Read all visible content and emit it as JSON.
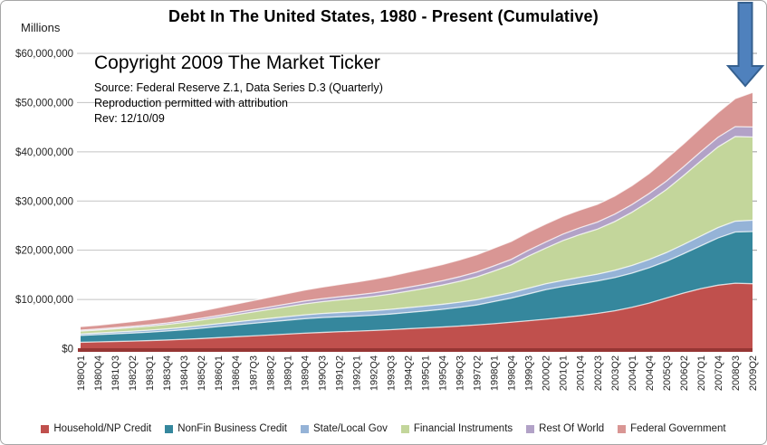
{
  "frame": {
    "background": "#FFFFFF",
    "border_color": "#A6A6A6"
  },
  "annotations": {
    "copyright": "Copyright 2009 The Market Ticker",
    "source": "Source: Federal Reserve Z.1, Data Series D.3 (Quarterly)",
    "permission": "Reproduction permitted with attribution",
    "revision": "Rev: 12/10/09",
    "arrow": {
      "direction": "down",
      "fill": "#4F81BD",
      "border": "#35608F"
    }
  },
  "chart_data": {
    "type": "area",
    "stacked": true,
    "title": "Debt In The United States, 1980 - Present (Cumulative)",
    "ylabel": "Millions",
    "xlabel": "",
    "ylim": [
      0,
      60000000
    ],
    "y_tick_step": 10000000,
    "y_tick_labels": [
      "$0",
      "$10,000,000",
      "$20,000,000",
      "$30,000,000",
      "$40,000,000",
      "$50,000,000",
      "$60,000,000"
    ],
    "x_tick_rotation": -90,
    "grid": true,
    "gridline_color": "#C3C3C3",
    "axis_line_color": "#963634",
    "tick_color": "#9A9A9A",
    "legend_position": "bottom",
    "categories": [
      "1980Q1",
      "1980Q4",
      "1981Q3",
      "1982Q2",
      "1983Q1",
      "1983Q4",
      "1984Q3",
      "1985Q2",
      "1986Q1",
      "1986Q4",
      "1987Q3",
      "1988Q2",
      "1989Q1",
      "1989Q4",
      "1990Q3",
      "1991Q2",
      "1992Q1",
      "1992Q4",
      "1993Q3",
      "1994Q2",
      "1995Q1",
      "1995Q4",
      "1996Q3",
      "1997Q2",
      "1998Q1",
      "1998Q4",
      "1999Q3",
      "2000Q2",
      "2001Q1",
      "2001Q4",
      "2002Q3",
      "2003Q2",
      "2004Q1",
      "2004Q4",
      "2005Q3",
      "2006Q2",
      "2007Q1",
      "2007Q4",
      "2008Q3",
      "2009Q2"
    ],
    "series": [
      {
        "name": "Household/NP Credit",
        "color": "#C0504D",
        "values": [
          1300000,
          1380000,
          1460000,
          1540000,
          1640000,
          1760000,
          1900000,
          2060000,
          2240000,
          2420000,
          2600000,
          2780000,
          2960000,
          3140000,
          3300000,
          3440000,
          3560000,
          3700000,
          3860000,
          4050000,
          4220000,
          4400000,
          4600000,
          4830000,
          5080000,
          5380000,
          5680000,
          6000000,
          6350000,
          6720000,
          7160000,
          7700000,
          8400000,
          9250000,
          10300000,
          11300000,
          12200000,
          12900000,
          13300000,
          13200000
        ]
      },
      {
        "name": "NonFin Business Credit",
        "color": "#35879D",
        "values": [
          1400000,
          1470000,
          1560000,
          1640000,
          1720000,
          1820000,
          1950000,
          2100000,
          2260000,
          2400000,
          2540000,
          2680000,
          2820000,
          2940000,
          3020000,
          3040000,
          3060000,
          3100000,
          3180000,
          3300000,
          3440000,
          3600000,
          3800000,
          4050000,
          4500000,
          4900000,
          5450000,
          6000000,
          6300000,
          6500000,
          6600000,
          6750000,
          6950000,
          7200000,
          7450000,
          8000000,
          8700000,
          9600000,
          10400000,
          10600000
        ]
      },
      {
        "name": "State/Local Gov",
        "color": "#95B3D7",
        "values": [
          310000,
          330000,
          350000,
          380000,
          410000,
          440000,
          480000,
          520000,
          570000,
          620000,
          670000,
          710000,
          750000,
          790000,
          820000,
          860000,
          890000,
          920000,
          950000,
          980000,
          1000000,
          1020000,
          1040000,
          1060000,
          1090000,
          1120000,
          1150000,
          1180000,
          1220000,
          1290000,
          1380000,
          1470000,
          1560000,
          1660000,
          1770000,
          1870000,
          1990000,
          2100000,
          2200000,
          2300000
        ]
      },
      {
        "name": "Financial Instruments",
        "color": "#C3D69B",
        "values": [
          550000,
          600000,
          660000,
          730000,
          800000,
          890000,
          1000000,
          1130000,
          1280000,
          1450000,
          1630000,
          1820000,
          2020000,
          2220000,
          2400000,
          2560000,
          2720000,
          2900000,
          3100000,
          3340000,
          3600000,
          3900000,
          4250000,
          4650000,
          5120000,
          5650000,
          6550000,
          7250000,
          8100000,
          8700000,
          9150000,
          9900000,
          10800000,
          11800000,
          12800000,
          14000000,
          15250000,
          16400000,
          17200000,
          16900000
        ]
      },
      {
        "name": "Rest Of World",
        "color": "#B2A2C7",
        "values": [
          200000,
          210000,
          230000,
          250000,
          270000,
          300000,
          330000,
          360000,
          390000,
          430000,
          470000,
          510000,
          550000,
          590000,
          620000,
          650000,
          680000,
          710000,
          750000,
          800000,
          840000,
          880000,
          930000,
          980000,
          1040000,
          1100000,
          1170000,
          1240000,
          1310000,
          1380000,
          1440000,
          1500000,
          1560000,
          1620000,
          1720000,
          1800000,
          1880000,
          1960000,
          2020000,
          2050000
        ]
      },
      {
        "name": "Federal Government",
        "color": "#D99694",
        "values": [
          720000,
          780000,
          860000,
          950000,
          1060000,
          1190000,
          1330000,
          1470000,
          1610000,
          1740000,
          1860000,
          1980000,
          2100000,
          2220000,
          2340000,
          2480000,
          2630000,
          2780000,
          2920000,
          3050000,
          3180000,
          3300000,
          3420000,
          3520000,
          3600000,
          3640000,
          3660000,
          3660000,
          3620000,
          3600000,
          3600000,
          3680000,
          3850000,
          4050000,
          4550000,
          4650000,
          4800000,
          5000000,
          5700000,
          7000000
        ]
      }
    ]
  }
}
